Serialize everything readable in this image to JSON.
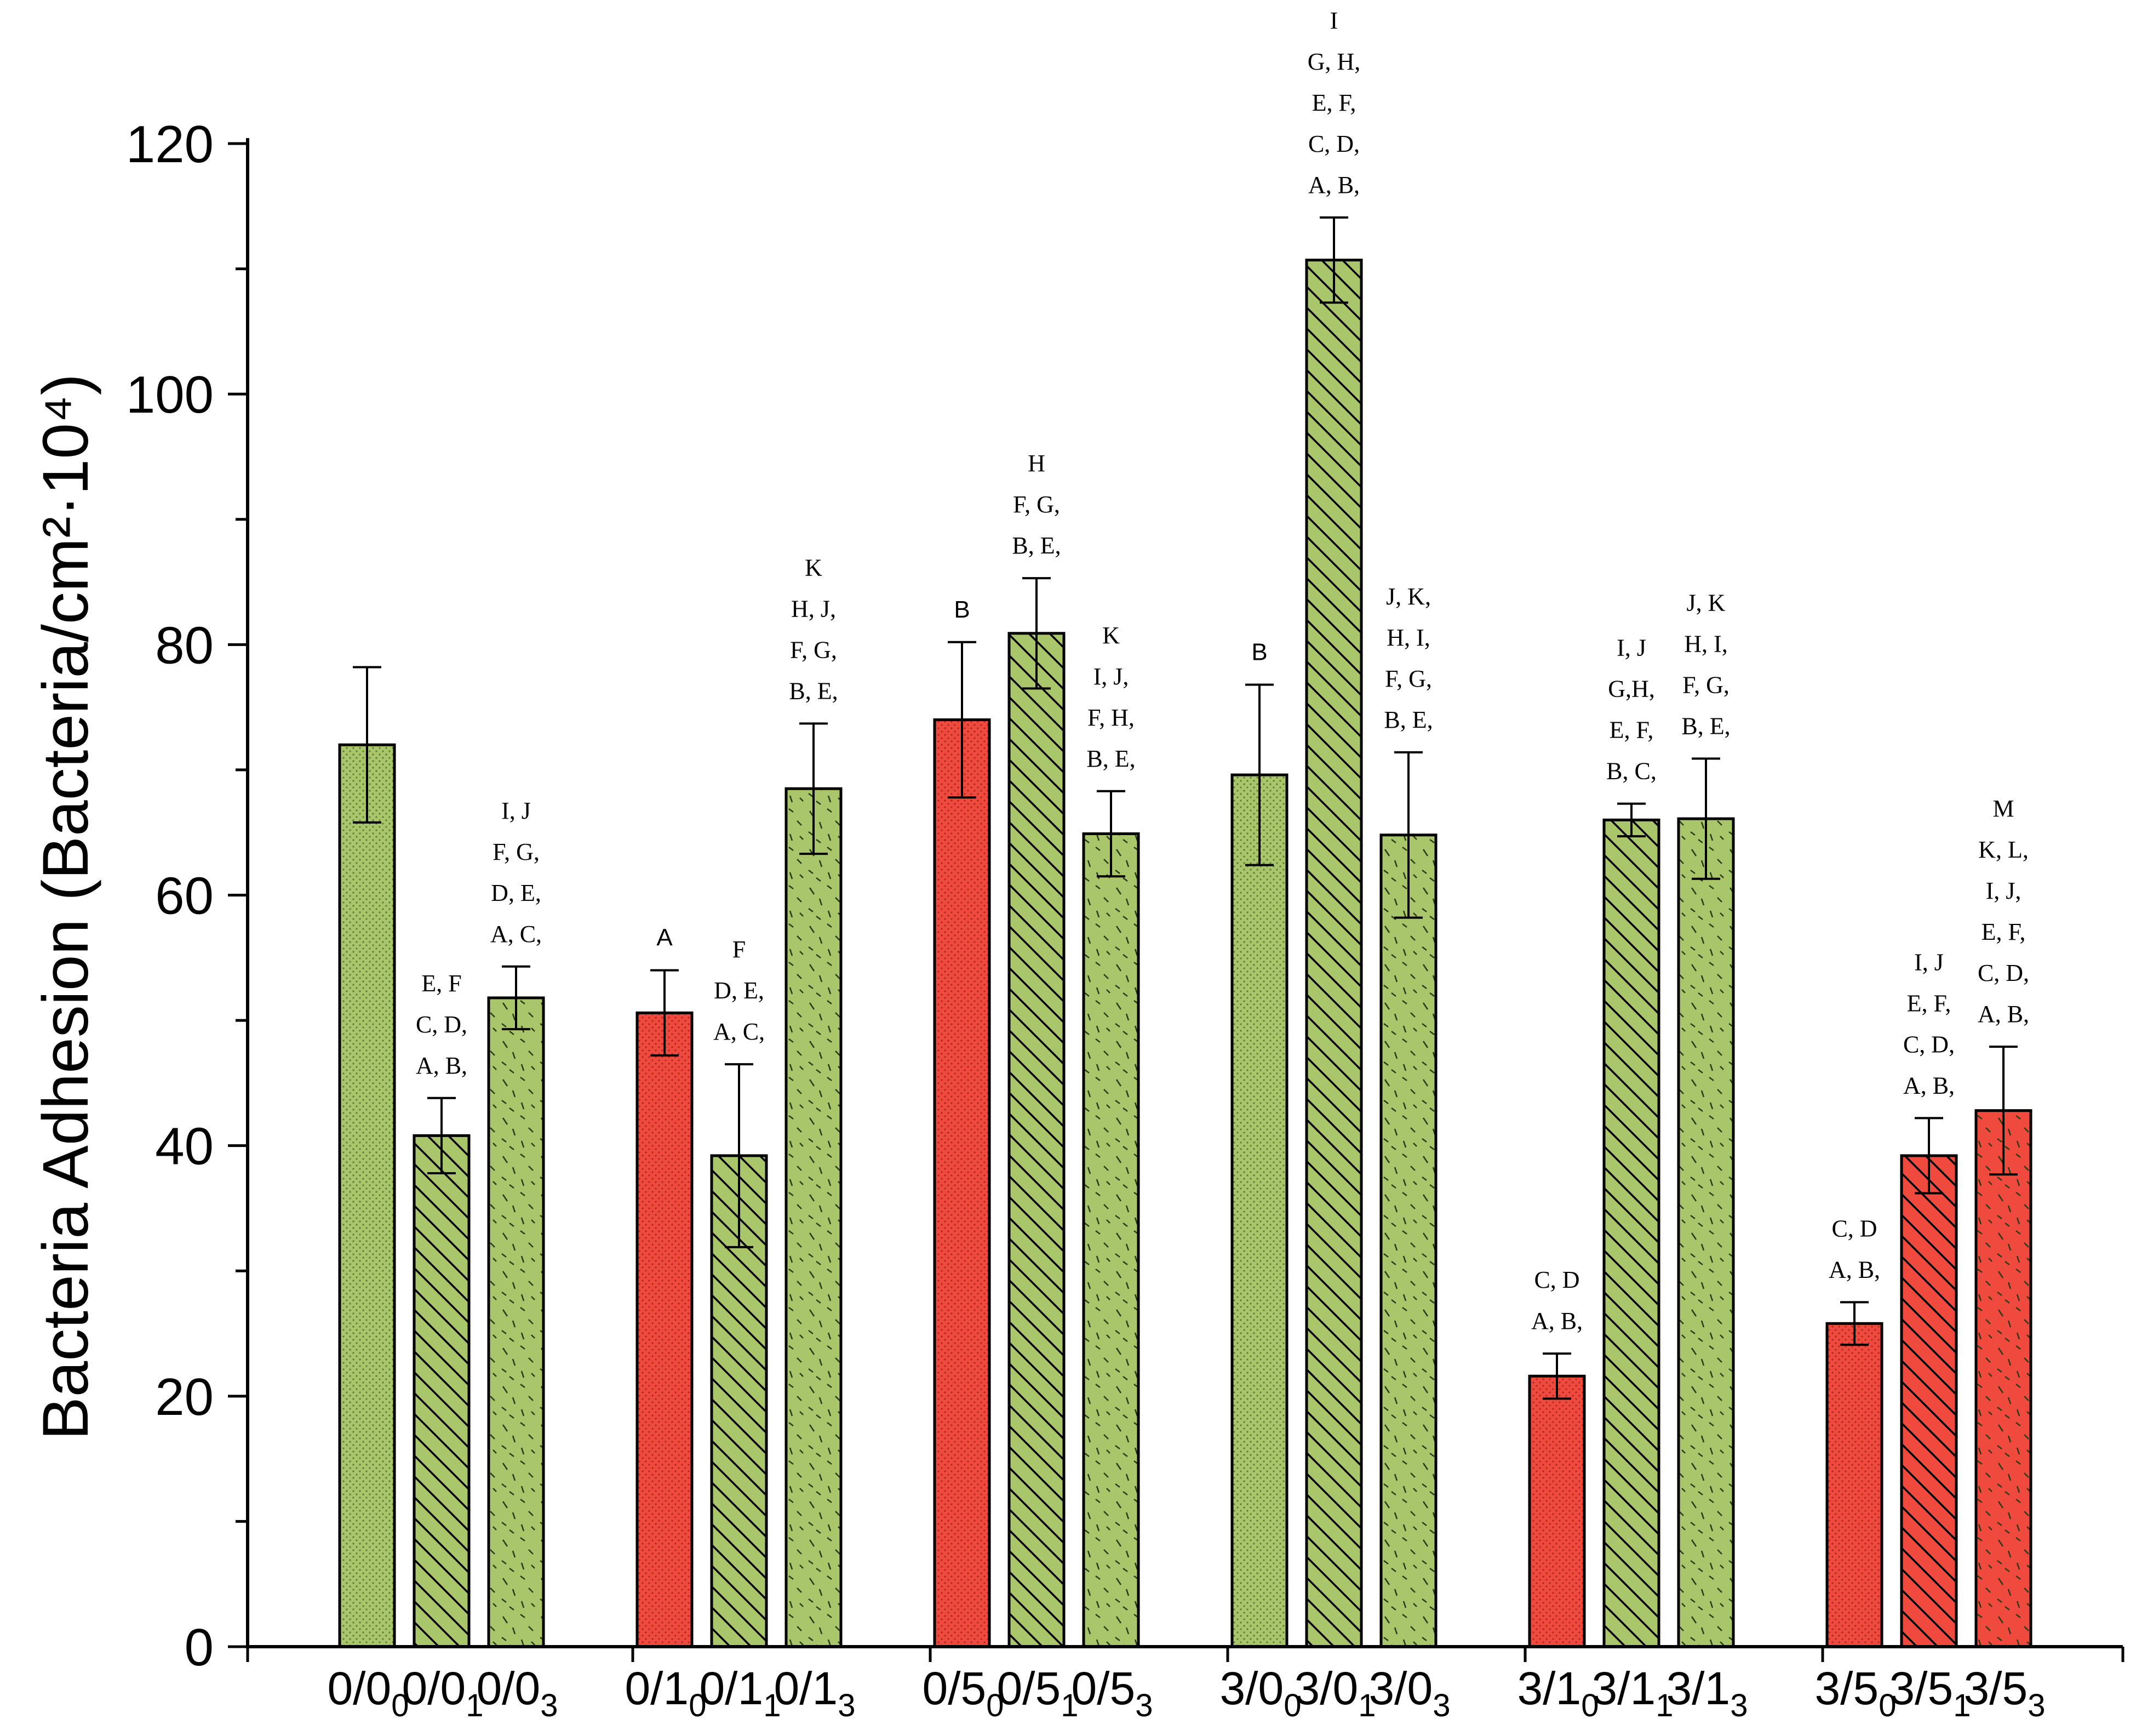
{
  "chart_data": {
    "type": "bar",
    "title": "",
    "xlabel": "",
    "ylabel": "Bacteria Adhesion (Bacteria/cm²·10⁴)",
    "ylim": [
      0,
      120
    ],
    "yticks": [
      0,
      20,
      40,
      60,
      80,
      100,
      120
    ],
    "grid": false,
    "legend": "none",
    "colors": {
      "green": "#a9c66b",
      "red": "#f04a3e",
      "outline": "#000000"
    },
    "groups": [
      {
        "bars": [
          {
            "base": "0/0",
            "sub": "0",
            "value": 72.0,
            "error": 6.2,
            "color": "green",
            "pattern": "dots",
            "letters": []
          },
          {
            "base": "0/0",
            "sub": "1",
            "value": 40.8,
            "error": 3.0,
            "color": "green",
            "pattern": "hatch",
            "letters": [
              "E, F",
              "C, D,",
              "A, B,"
            ]
          },
          {
            "base": "0/0",
            "sub": "3",
            "value": 51.8,
            "error": 2.5,
            "color": "green",
            "pattern": "dash",
            "letters": [
              "I,   J",
              "F, G,",
              "D, E,",
              "A, C,"
            ]
          }
        ]
      },
      {
        "bars": [
          {
            "base": "0/1",
            "sub": "0",
            "value": 50.6,
            "error": 3.4,
            "color": "red",
            "pattern": "dots",
            "letters": [
              "A"
            ]
          },
          {
            "base": "0/1",
            "sub": "1",
            "value": 39.2,
            "error": 7.3,
            "color": "green",
            "pattern": "hatch",
            "letters": [
              "F",
              "D, E,",
              "A, C,"
            ]
          },
          {
            "base": "0/1",
            "sub": "3",
            "value": 68.5,
            "error": 5.2,
            "color": "green",
            "pattern": "dash",
            "letters": [
              "K",
              "H,  J,",
              "F, G,",
              "B, E,"
            ]
          }
        ]
      },
      {
        "bars": [
          {
            "base": "0/5",
            "sub": "0",
            "value": 74.0,
            "error": 6.2,
            "color": "red",
            "pattern": "dots",
            "letters": [
              "B"
            ]
          },
          {
            "base": "0/5",
            "sub": "1",
            "value": 80.9,
            "error": 4.4,
            "color": "green",
            "pattern": "hatch",
            "letters": [
              "H",
              "F, G,",
              "B, E,"
            ]
          },
          {
            "base": "0/5",
            "sub": "3",
            "value": 64.9,
            "error": 3.4,
            "color": "green",
            "pattern": "dash",
            "letters": [
              "K",
              "I,  J,",
              "F, H,",
              "B, E,"
            ]
          }
        ]
      },
      {
        "bars": [
          {
            "base": "3/0",
            "sub": "0",
            "value": 69.6,
            "error": 7.2,
            "color": "green",
            "pattern": "dots",
            "letters": [
              "B"
            ]
          },
          {
            "base": "3/0",
            "sub": "1",
            "value": 110.7,
            "error": 3.4,
            "color": "green",
            "pattern": "hatch",
            "letters": [
              "I",
              "G, H,",
              "E,  F,",
              "C, D,",
              "A, B,"
            ]
          },
          {
            "base": "3/0",
            "sub": "3",
            "value": 64.8,
            "error": 6.6,
            "color": "green",
            "pattern": "dash",
            "letters": [
              "J, K,",
              "H, I,",
              "F, G,",
              "B, E,"
            ]
          }
        ]
      },
      {
        "bars": [
          {
            "base": "3/1",
            "sub": "0",
            "value": 21.6,
            "error": 1.8,
            "color": "red",
            "pattern": "dots",
            "letters": [
              "C, D",
              "A, B,"
            ]
          },
          {
            "base": "3/1",
            "sub": "1",
            "value": 66.0,
            "error": 1.3,
            "color": "green",
            "pattern": "hatch",
            "letters": [
              "I,  J",
              "G,H,",
              "E, F,",
              "B, C,"
            ]
          },
          {
            "base": "3/1",
            "sub": "3",
            "value": 66.1,
            "error": 4.8,
            "color": "green",
            "pattern": "dash",
            "letters": [
              "J, K",
              "H, I,",
              "F, G,",
              "B, E,"
            ]
          }
        ]
      },
      {
        "bars": [
          {
            "base": "3/5",
            "sub": "0",
            "value": 25.8,
            "error": 1.7,
            "color": "red",
            "pattern": "dots",
            "letters": [
              "C, D",
              "A, B,"
            ]
          },
          {
            "base": "3/5",
            "sub": "1",
            "value": 39.2,
            "error": 3.0,
            "color": "red",
            "pattern": "hatch",
            "letters": [
              "I,  J",
              "E, F,",
              "C, D,",
              "A, B,"
            ]
          },
          {
            "base": "3/5",
            "sub": "3",
            "value": 42.8,
            "error": 5.1,
            "color": "red",
            "pattern": "dash",
            "letters": [
              "M",
              "K, L,",
              "I,  J,",
              "E, F,",
              "C, D,",
              "A, B,"
            ]
          }
        ]
      }
    ]
  }
}
